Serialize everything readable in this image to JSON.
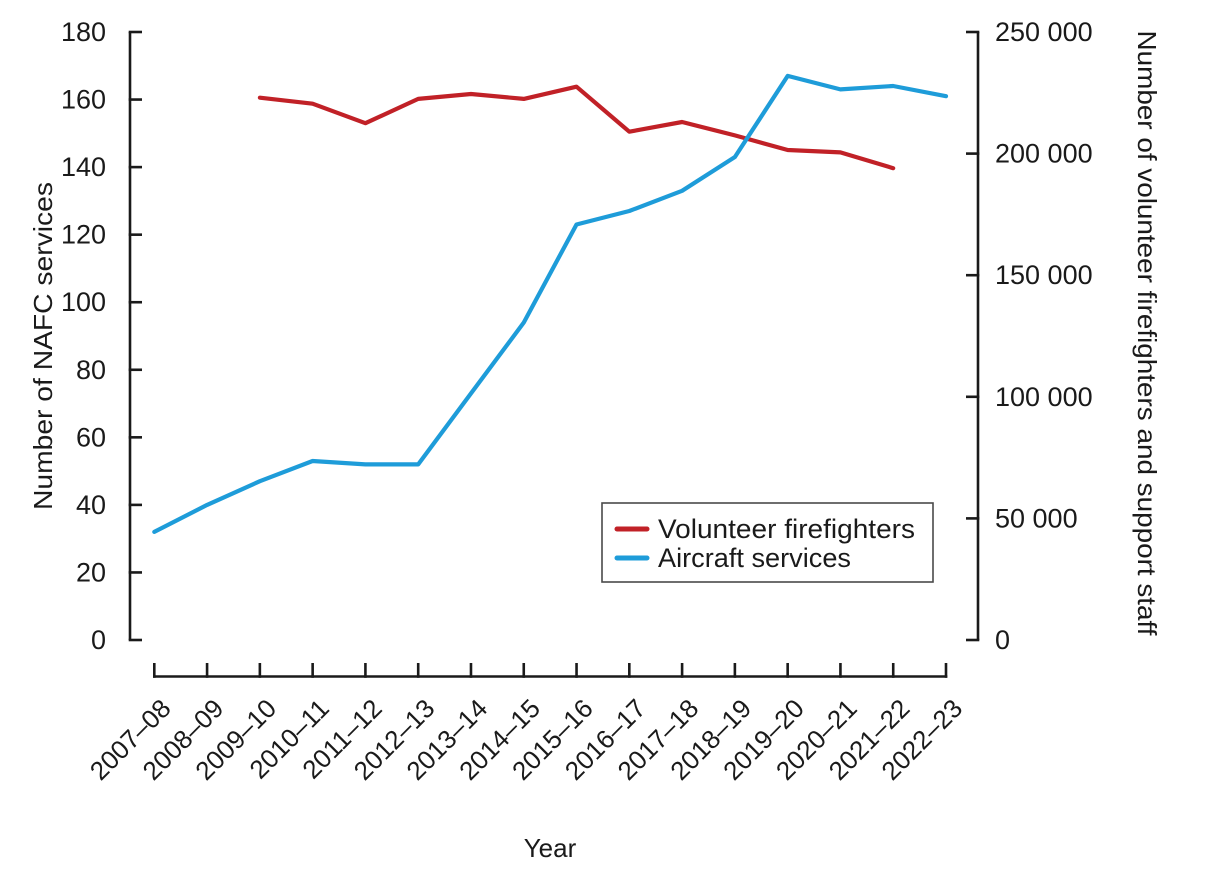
{
  "figure": {
    "background_color": "#ffffff",
    "text_color": "#1a1a1a",
    "axis_color": "#1a1a1a"
  },
  "chart_data": {
    "type": "line",
    "title": "",
    "xlabel": "Year",
    "categories": [
      "2007–08",
      "2008–09",
      "2009–10",
      "2010–11",
      "2011–12",
      "2012–13",
      "2013–14",
      "2014–15",
      "2015–16",
      "2016–17",
      "2017–18",
      "2018–19",
      "2019–20",
      "2020–21",
      "2021–22",
      "2022–23"
    ],
    "axes": {
      "left": {
        "label": "Number of NAFC services",
        "min": 0,
        "max": 180,
        "tick_step": 20,
        "tick_labels": [
          "0",
          "20",
          "40",
          "60",
          "80",
          "100",
          "120",
          "140",
          "160",
          "180"
        ]
      },
      "right": {
        "label": "Number of volunteer firefighters and support staff",
        "min": 0,
        "max": 250000,
        "tick_step": 50000,
        "tick_labels": [
          "0",
          "50 000",
          "100 000",
          "150 000",
          "200 000",
          "250 000"
        ]
      }
    },
    "series": [
      {
        "name": "Volunteer firefighters",
        "color": "#c12127",
        "axis": "right",
        "values": [
          null,
          null,
          223000,
          220500,
          212500,
          222500,
          224500,
          222500,
          227500,
          209000,
          213000,
          207500,
          201500,
          200500,
          194000,
          null
        ]
      },
      {
        "name": "Aircraft services",
        "color": "#1e9cd9",
        "axis": "left",
        "values": [
          32,
          40,
          47,
          53,
          52,
          52,
          73,
          94,
          123,
          127,
          133,
          143,
          167,
          163,
          164,
          161
        ]
      }
    ],
    "legend_position": "inside-lower-right",
    "grid": false
  }
}
